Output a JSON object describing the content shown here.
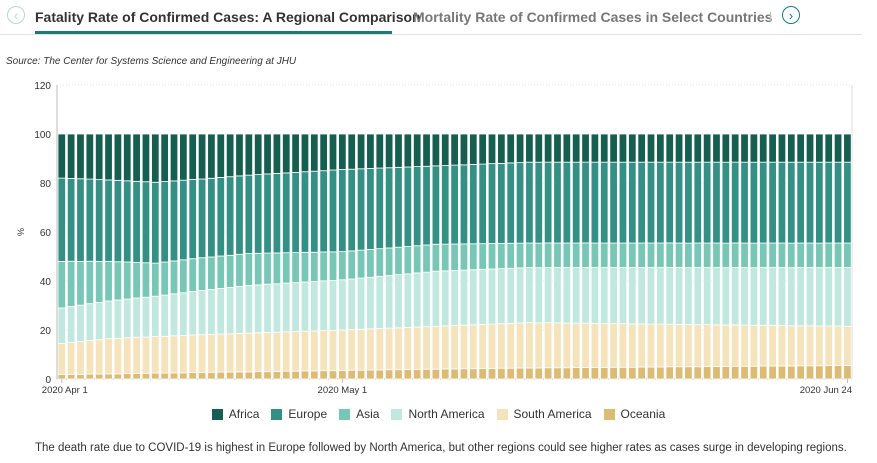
{
  "tabs": {
    "prev_icon": "chevron-left-icon",
    "next_icon": "chevron-right-icon",
    "items": [
      {
        "label": "Fatality Rate of Confirmed Cases: A Regional Comparison",
        "active": true
      },
      {
        "label": "Mortality Rate of Confirmed Cases in Select Countries",
        "active": false
      }
    ]
  },
  "source": "Source: The Center for Systems Science and Engineering at JHU",
  "caption": "The death rate due to COVID-19 is highest in Europe followed by North America, but other regions could see higher rates as cases surge in developing regions.",
  "colors": {
    "accent": "#1e7a78"
  },
  "chart_data": {
    "type": "bar",
    "stacked": true,
    "title": "",
    "xlabel": "",
    "ylabel": "%",
    "ylim": [
      0,
      120
    ],
    "yticks": [
      0,
      20,
      40,
      60,
      80,
      100,
      120
    ],
    "x_range": [
      "2020-04-01",
      "2020-06-24"
    ],
    "xticks": [
      "2020 Apr 1",
      "2020 May 1",
      "2020 Jun 24"
    ],
    "grid": true,
    "legend_position": "bottom",
    "series": [
      {
        "name": "Oceania",
        "color": "#dcbb74",
        "values": [
          1.8,
          1.9,
          1.9,
          2.0,
          2.0,
          2.1,
          2.1,
          2.2,
          2.3,
          2.3,
          2.4,
          2.4,
          2.5,
          2.5,
          2.6,
          2.6,
          2.7,
          2.8,
          2.8,
          2.9,
          2.9,
          3.0,
          3.0,
          3.1,
          3.2,
          3.2,
          3.3,
          3.3,
          3.4,
          3.4,
          3.5,
          3.6,
          3.6,
          3.7,
          3.7,
          3.8,
          3.8,
          3.9,
          3.9,
          4.0,
          4.0,
          4.1,
          4.1,
          4.2,
          4.2,
          4.3,
          4.3,
          4.4,
          4.4,
          4.5,
          4.5,
          4.5,
          4.6,
          4.6,
          4.6,
          4.7,
          4.7,
          4.7,
          4.7,
          4.8,
          4.8,
          4.8,
          4.9,
          4.9,
          4.9,
          5.0,
          5.0,
          5.0,
          5.0,
          5.1,
          5.1,
          5.1,
          5.2,
          5.2,
          5.2,
          5.3,
          5.3,
          5.3,
          5.3,
          5.4,
          5.4,
          5.4,
          5.5,
          5.5,
          5.5
        ]
      },
      {
        "name": "South America",
        "color": "#f5e3bb",
        "values": [
          12.7,
          13.1,
          13.4,
          13.8,
          14.1,
          14.5,
          14.6,
          14.7,
          14.8,
          14.8,
          14.9,
          15.0,
          15.1,
          15.2,
          15.3,
          15.4,
          15.4,
          15.5,
          15.6,
          15.7,
          15.8,
          15.9,
          16.0,
          16.0,
          16.1,
          16.2,
          16.2,
          16.3,
          16.4,
          16.4,
          16.5,
          16.6,
          16.7,
          16.8,
          16.9,
          17.0,
          17.1,
          17.2,
          17.3,
          17.4,
          17.5,
          17.6,
          17.7,
          17.8,
          17.9,
          18.0,
          18.1,
          18.2,
          18.3,
          18.4,
          18.5,
          18.4,
          18.4,
          18.3,
          18.2,
          18.1,
          18.1,
          18.0,
          17.9,
          17.8,
          17.8,
          17.7,
          17.6,
          17.5,
          17.5,
          17.4,
          17.3,
          17.2,
          17.2,
          17.1,
          17.0,
          16.9,
          16.9,
          16.8,
          16.7,
          16.6,
          16.6,
          16.5,
          16.4,
          16.3,
          16.3,
          16.2,
          16.1,
          16.1,
          16.0
        ]
      },
      {
        "name": "North America",
        "color": "#c0e8df",
        "values": [
          14.5,
          14.7,
          14.9,
          15.1,
          15.3,
          15.5,
          15.7,
          15.9,
          16.1,
          16.3,
          16.5,
          16.8,
          17.1,
          17.4,
          17.7,
          18.0,
          18.3,
          18.6,
          18.9,
          19.2,
          19.5,
          19.6,
          19.7,
          19.8,
          19.9,
          20.0,
          20.1,
          20.2,
          20.3,
          20.4,
          20.5,
          20.7,
          20.9,
          21.1,
          21.3,
          21.5,
          21.7,
          21.9,
          22.1,
          22.3,
          22.5,
          22.5,
          22.5,
          22.5,
          22.5,
          22.5,
          22.5,
          22.5,
          22.5,
          22.5,
          22.5,
          22.5,
          22.6,
          22.6,
          22.7,
          22.7,
          22.8,
          22.8,
          22.9,
          22.9,
          22.9,
          23.0,
          23.0,
          23.1,
          23.1,
          23.2,
          23.2,
          23.2,
          23.3,
          23.3,
          23.4,
          23.4,
          23.5,
          23.5,
          23.5,
          23.6,
          23.6,
          23.7,
          23.7,
          23.8,
          23.8,
          23.8,
          23.9,
          23.9,
          24.0
        ]
      },
      {
        "name": "Asia",
        "color": "#78c6b6",
        "values": [
          19.0,
          18.5,
          17.9,
          17.4,
          16.8,
          16.3,
          15.7,
          15.2,
          14.6,
          14.1,
          13.5,
          13.5,
          13.4,
          13.4,
          13.3,
          13.3,
          13.2,
          13.2,
          13.1,
          13.1,
          13.0,
          12.9,
          12.7,
          12.6,
          12.4,
          12.3,
          12.1,
          12.0,
          11.8,
          11.7,
          11.5,
          11.5,
          11.4,
          11.4,
          11.3,
          11.3,
          11.2,
          11.2,
          11.1,
          11.1,
          11.0,
          10.9,
          10.8,
          10.7,
          10.6,
          10.5,
          10.4,
          10.3,
          10.2,
          10.1,
          10.0,
          10.0,
          10.0,
          10.0,
          10.0,
          10.0,
          10.0,
          10.0,
          10.0,
          10.0,
          10.0,
          10.0,
          10.0,
          10.0,
          10.0,
          10.0,
          10.0,
          10.0,
          10.0,
          10.0,
          10.0,
          10.0,
          10.0,
          10.0,
          10.0,
          10.0,
          10.0,
          10.0,
          10.0,
          10.0,
          10.0,
          10.0,
          10.0,
          10.0,
          10.0
        ]
      },
      {
        "name": "Europe",
        "color": "#348f84",
        "values": [
          34.0,
          33.9,
          33.8,
          33.7,
          33.6,
          33.5,
          33.4,
          33.3,
          33.2,
          33.1,
          33.0,
          32.8,
          32.6,
          32.4,
          32.2,
          32.0,
          32.0,
          32.0,
          32.0,
          32.0,
          32.0,
          32.2,
          32.3,
          32.5,
          32.6,
          32.8,
          32.9,
          33.1,
          33.2,
          33.4,
          33.5,
          33.4,
          33.2,
          33.1,
          32.9,
          32.8,
          32.6,
          32.5,
          32.3,
          32.2,
          32.0,
          32.1,
          32.2,
          32.3,
          32.4,
          32.5,
          32.6,
          32.7,
          32.8,
          32.9,
          33.0,
          33.0,
          33.0,
          33.0,
          33.0,
          33.0,
          33.0,
          33.0,
          33.0,
          33.0,
          33.0,
          33.0,
          33.0,
          33.0,
          33.0,
          33.0,
          33.0,
          33.0,
          33.0,
          33.0,
          33.0,
          33.0,
          33.0,
          33.0,
          33.0,
          33.0,
          33.0,
          33.0,
          33.0,
          33.0,
          33.0,
          33.0,
          33.0,
          33.0,
          33.0
        ]
      },
      {
        "name": "Africa",
        "color": "#155e50",
        "values": [
          18.0,
          18.2,
          18.3,
          18.5,
          18.7,
          18.9,
          19.0,
          19.2,
          19.4,
          19.5,
          19.7,
          19.4,
          19.1,
          18.8,
          18.5,
          18.3,
          18.0,
          17.7,
          17.4,
          17.1,
          16.8,
          16.6,
          16.3,
          16.1,
          15.9,
          15.7,
          15.4,
          15.2,
          15.0,
          14.7,
          14.5,
          14.4,
          14.2,
          14.1,
          13.9,
          13.8,
          13.6,
          13.5,
          13.3,
          13.2,
          13.0,
          12.9,
          12.7,
          12.6,
          12.4,
          12.3,
          12.1,
          12.0,
          11.8,
          11.7,
          11.5,
          11.5,
          11.5,
          11.5,
          11.5,
          11.5,
          11.5,
          11.5,
          11.5,
          11.5,
          11.5,
          11.5,
          11.5,
          11.5,
          11.5,
          11.5,
          11.5,
          11.5,
          11.5,
          11.5,
          11.5,
          11.5,
          11.5,
          11.5,
          11.5,
          11.5,
          11.5,
          11.5,
          11.5,
          11.5,
          11.5,
          11.5,
          11.5,
          11.5,
          11.5
        ]
      }
    ],
    "legend": [
      "Africa",
      "Europe",
      "Asia",
      "North America",
      "South America",
      "Oceania"
    ]
  }
}
